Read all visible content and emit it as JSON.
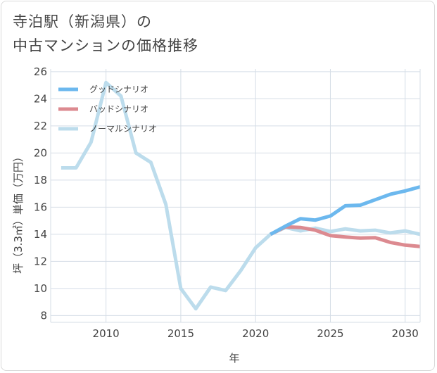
{
  "title": {
    "line1": "寺泊駅（新潟県）の",
    "line2": "中古マンションの価格推移"
  },
  "colors": {
    "good": "#6cb8ee",
    "bad": "#dc8a90",
    "normal": "#bcdcec",
    "grid": "#d5dde6",
    "axis": "#444444"
  },
  "chart_data": {
    "type": "line",
    "title": "寺泊駅（新潟県）の中古マンションの価格推移",
    "xlabel": "年",
    "ylabel": "坪（3.3㎡）単価（万円）",
    "xlim": [
      2006.3,
      2031
    ],
    "ylim": [
      7.5,
      26.2
    ],
    "x_ticks": [
      2010,
      2015,
      2020,
      2025,
      2030
    ],
    "y_ticks": [
      8,
      10,
      12,
      14,
      16,
      18,
      20,
      22,
      24,
      26
    ],
    "grid": true,
    "legend_position": "top-left",
    "series": [
      {
        "name": "グッドシナリオ",
        "color": "#6cb8ee",
        "points": [
          [
            2021,
            14.0
          ],
          [
            2022,
            14.6
          ],
          [
            2023,
            15.15
          ],
          [
            2024,
            15.05
          ],
          [
            2025,
            15.35
          ],
          [
            2026,
            16.1
          ],
          [
            2027,
            16.15
          ],
          [
            2028,
            16.55
          ],
          [
            2029,
            16.95
          ],
          [
            2030,
            17.2
          ],
          [
            2031,
            17.5
          ]
        ]
      },
      {
        "name": "バッドシナリオ",
        "color": "#dc8a90",
        "points": [
          [
            2021,
            14.0
          ],
          [
            2022,
            14.55
          ],
          [
            2023,
            14.5
          ],
          [
            2024,
            14.3
          ],
          [
            2025,
            13.9
          ],
          [
            2026,
            13.8
          ],
          [
            2027,
            13.72
          ],
          [
            2028,
            13.75
          ],
          [
            2029,
            13.4
          ],
          [
            2030,
            13.2
          ],
          [
            2031,
            13.1
          ]
        ]
      },
      {
        "name": "ノーマルシナリオ",
        "color": "#bcdcec",
        "points": [
          [
            2007,
            18.9
          ],
          [
            2008,
            18.9
          ],
          [
            2009,
            20.8
          ],
          [
            2010,
            25.2
          ],
          [
            2011,
            24.2
          ],
          [
            2012,
            20.0
          ],
          [
            2013,
            19.3
          ],
          [
            2014,
            16.2
          ],
          [
            2015,
            10.0
          ],
          [
            2016,
            8.5
          ],
          [
            2017,
            10.1
          ],
          [
            2018,
            9.85
          ],
          [
            2019,
            11.3
          ],
          [
            2020,
            13.0
          ],
          [
            2021,
            14.0
          ],
          [
            2022,
            14.5
          ],
          [
            2023,
            14.25
          ],
          [
            2024,
            14.45
          ],
          [
            2025,
            14.2
          ],
          [
            2026,
            14.4
          ],
          [
            2027,
            14.25
          ],
          [
            2028,
            14.3
          ],
          [
            2029,
            14.1
          ],
          [
            2030,
            14.25
          ],
          [
            2031,
            14.0
          ]
        ]
      }
    ]
  }
}
